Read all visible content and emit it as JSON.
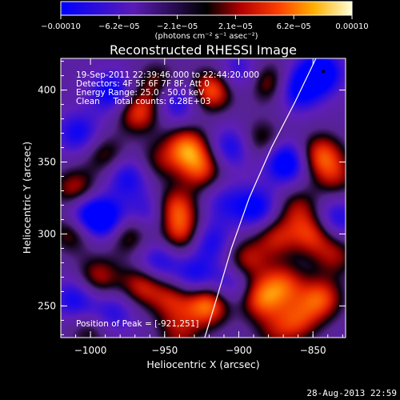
{
  "chart_data": {
    "type": "heatmap",
    "title": "Reconstructed RHESSI Image",
    "xlabel": "Heliocentric X (arcsec)",
    "ylabel": "Heliocentric Y (arcsec)",
    "xlim": [
      -1020,
      -828
    ],
    "ylim": [
      228,
      422
    ],
    "x_ticks": [
      -1000,
      -950,
      -900,
      -850
    ],
    "x_tick_labels": [
      "−1000",
      "−950",
      "−900",
      "−850"
    ],
    "y_ticks": [
      250,
      300,
      350,
      400
    ],
    "y_tick_labels": [
      "250",
      "300",
      "350",
      "400"
    ],
    "colorbar": {
      "min": -0.0001,
      "max": 0.0001,
      "tick_labels": [
        "−0.00010",
        "−6.2e−05",
        "−2.1e−05",
        "2.1e−05",
        "6.2e−05",
        "0.00010"
      ],
      "units_label": "(photons cm⁻² s⁻¹ asec⁻²)"
    },
    "annotations": [
      "19-Sep-2011 22:39:46.000 to 22:44:20.000",
      "Detectors: 4F 5F 6F 7F 8F, Att 0",
      "Energy Range: 25.0 - 50.0 keV",
      "Clean     Total counts: 6.28E+03"
    ],
    "peak_label": "Position of Peak = [-921,251]",
    "peak_position": [
      -921,
      251
    ],
    "limb": [
      [
        -923,
        228
      ],
      [
        -915,
        255
      ],
      [
        -905,
        290
      ],
      [
        -893,
        325
      ],
      [
        -878,
        360
      ],
      [
        -862,
        392
      ],
      [
        -848,
        422
      ]
    ],
    "sources": [
      {
        "x": -985,
        "y": 398,
        "a": -0.7
      },
      {
        "x": -968,
        "y": 385,
        "a": 0.8
      },
      {
        "x": -955,
        "y": 405,
        "a": 0.5
      },
      {
        "x": -942,
        "y": 392,
        "a": -0.6
      },
      {
        "x": -918,
        "y": 400,
        "a": 0.9
      },
      {
        "x": -900,
        "y": 412,
        "a": -0.5
      },
      {
        "x": -880,
        "y": 405,
        "a": 0.6
      },
      {
        "x": -860,
        "y": 400,
        "a": -0.7
      },
      {
        "x": -845,
        "y": 412,
        "a": -0.9
      },
      {
        "x": -1008,
        "y": 370,
        "a": -0.6
      },
      {
        "x": -1010,
        "y": 330,
        "a": 0.7
      },
      {
        "x": -1012,
        "y": 302,
        "a": 0.6
      },
      {
        "x": -990,
        "y": 355,
        "a": 0.5
      },
      {
        "x": -975,
        "y": 340,
        "a": -0.6
      },
      {
        "x": -955,
        "y": 350,
        "a": 0.4
      },
      {
        "x": -935,
        "y": 360,
        "a": 0.9
      },
      {
        "x": -925,
        "y": 345,
        "a": 0.7
      },
      {
        "x": -905,
        "y": 360,
        "a": -0.6
      },
      {
        "x": -885,
        "y": 365,
        "a": 0.5
      },
      {
        "x": -868,
        "y": 350,
        "a": -0.9
      },
      {
        "x": -845,
        "y": 355,
        "a": 0.8
      },
      {
        "x": -835,
        "y": 340,
        "a": 0.5
      },
      {
        "x": -1005,
        "y": 315,
        "a": -0.7
      },
      {
        "x": -990,
        "y": 310,
        "a": -0.9
      },
      {
        "x": -975,
        "y": 300,
        "a": 0.6
      },
      {
        "x": -960,
        "y": 315,
        "a": -0.5
      },
      {
        "x": -943,
        "y": 318,
        "a": 0.8
      },
      {
        "x": -938,
        "y": 300,
        "a": 0.7
      },
      {
        "x": -920,
        "y": 295,
        "a": -0.6
      },
      {
        "x": -910,
        "y": 322,
        "a": -0.4
      },
      {
        "x": -888,
        "y": 318,
        "a": -0.7
      },
      {
        "x": -875,
        "y": 298,
        "a": 0.6
      },
      {
        "x": -860,
        "y": 318,
        "a": 0.5
      },
      {
        "x": -850,
        "y": 300,
        "a": 0.7
      },
      {
        "x": -835,
        "y": 310,
        "a": -0.6
      },
      {
        "x": -1010,
        "y": 255,
        "a": -0.6
      },
      {
        "x": -995,
        "y": 270,
        "a": 0.6
      },
      {
        "x": -985,
        "y": 245,
        "a": -0.5
      },
      {
        "x": -965,
        "y": 265,
        "a": 0.7
      },
      {
        "x": -955,
        "y": 280,
        "a": -0.6
      },
      {
        "x": -945,
        "y": 255,
        "a": 0.6
      },
      {
        "x": -930,
        "y": 270,
        "a": -0.6
      },
      {
        "x": -921,
        "y": 251,
        "a": 1.0
      },
      {
        "x": -905,
        "y": 265,
        "a": -0.5
      },
      {
        "x": -895,
        "y": 282,
        "a": 0.6
      },
      {
        "x": -885,
        "y": 255,
        "a": 0.8
      },
      {
        "x": -870,
        "y": 265,
        "a": 0.7
      },
      {
        "x": -860,
        "y": 240,
        "a": 0.6
      },
      {
        "x": -845,
        "y": 255,
        "a": 0.8
      },
      {
        "x": -835,
        "y": 285,
        "a": 0.5
      },
      {
        "x": -1000,
        "y": 232,
        "a": 0.4
      },
      {
        "x": -940,
        "y": 232,
        "a": 0.5
      },
      {
        "x": -875,
        "y": 232,
        "a": 0.4
      }
    ]
  },
  "footer": {
    "timestamp": "28-Aug-2013 22:59"
  }
}
